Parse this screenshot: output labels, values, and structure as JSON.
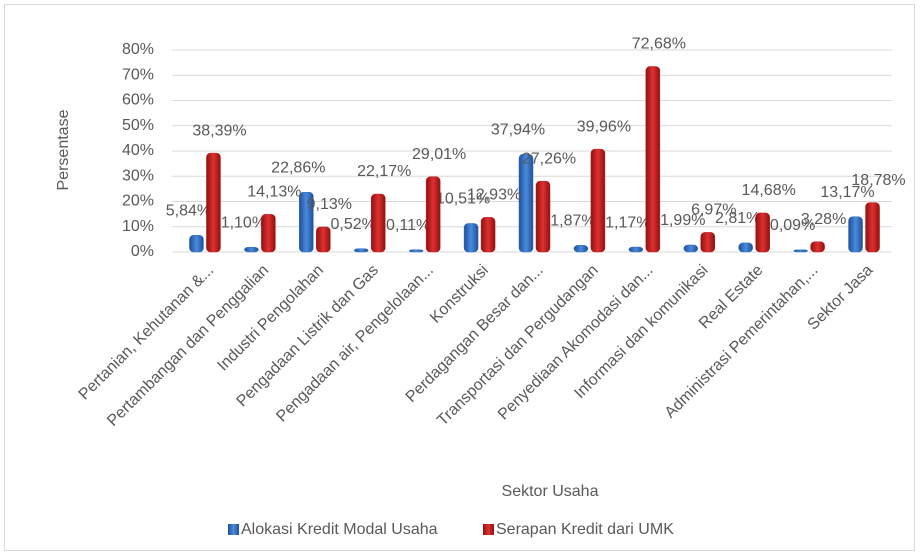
{
  "chart_data": {
    "type": "bar",
    "xlabel": "Sektor Usaha",
    "ylabel": "Persentase",
    "categories": [
      "Pertanian, Kehutanan &...",
      "Pertambangan dan Penggalian",
      "Industri Pengolahan",
      "Pengadaan Listrik dan Gas",
      "Pengadaan air, Pengelolaan...",
      "Konstruksi",
      "Perdagangan Besar dan...",
      "Transportasi dan Pergudangan",
      "Penyediaan Akomodasi dan...",
      "Informasi dan komunikasi",
      "Real Estate",
      "Administrasi Pemerintahan,...",
      "Sektor Jasa"
    ],
    "series": [
      {
        "name": "Alokasi Kredit Modal Usaha",
        "color": "#2e6fc0",
        "values": [
          5.84,
          1.1,
          22.86,
          0.52,
          0.11,
          10.51,
          37.94,
          1.87,
          1.17,
          1.99,
          2.81,
          0.09,
          13.17
        ],
        "value_labels": [
          "5,84%",
          "1,10%",
          "22,86%",
          "0,52%",
          "0,11%",
          "10,51%",
          "37,94%",
          "1,87%",
          "1,17%",
          "1,99%",
          "2,81%",
          "0,09%",
          "13,17%"
        ]
      },
      {
        "name": "Serapan Kredit dari UMK",
        "color": "#c0201f",
        "values": [
          38.39,
          14.13,
          9.13,
          22.17,
          29.01,
          12.93,
          27.26,
          39.96,
          72.68,
          6.97,
          14.68,
          3.28,
          18.78
        ],
        "value_labels": [
          "38,39%",
          "14,13%",
          "9,13%",
          "22,17%",
          "29,01%",
          "12,93%",
          "27,26%",
          "39,96%",
          "72,68%",
          "6,97%",
          "14,68%",
          "3,28%",
          "18,78%"
        ]
      }
    ],
    "ylim": [
      0,
      80
    ],
    "yticks": [
      {
        "value": 0,
        "label": "0%"
      },
      {
        "value": 10,
        "label": "10%"
      },
      {
        "value": 20,
        "label": "20%"
      },
      {
        "value": 30,
        "label": "30%"
      },
      {
        "value": 40,
        "label": "40%"
      },
      {
        "value": 50,
        "label": "50%"
      },
      {
        "value": 60,
        "label": "60%"
      },
      {
        "value": 70,
        "label": "70%"
      },
      {
        "value": 80,
        "label": "80%"
      }
    ],
    "grid": true,
    "legend": "bottom"
  }
}
